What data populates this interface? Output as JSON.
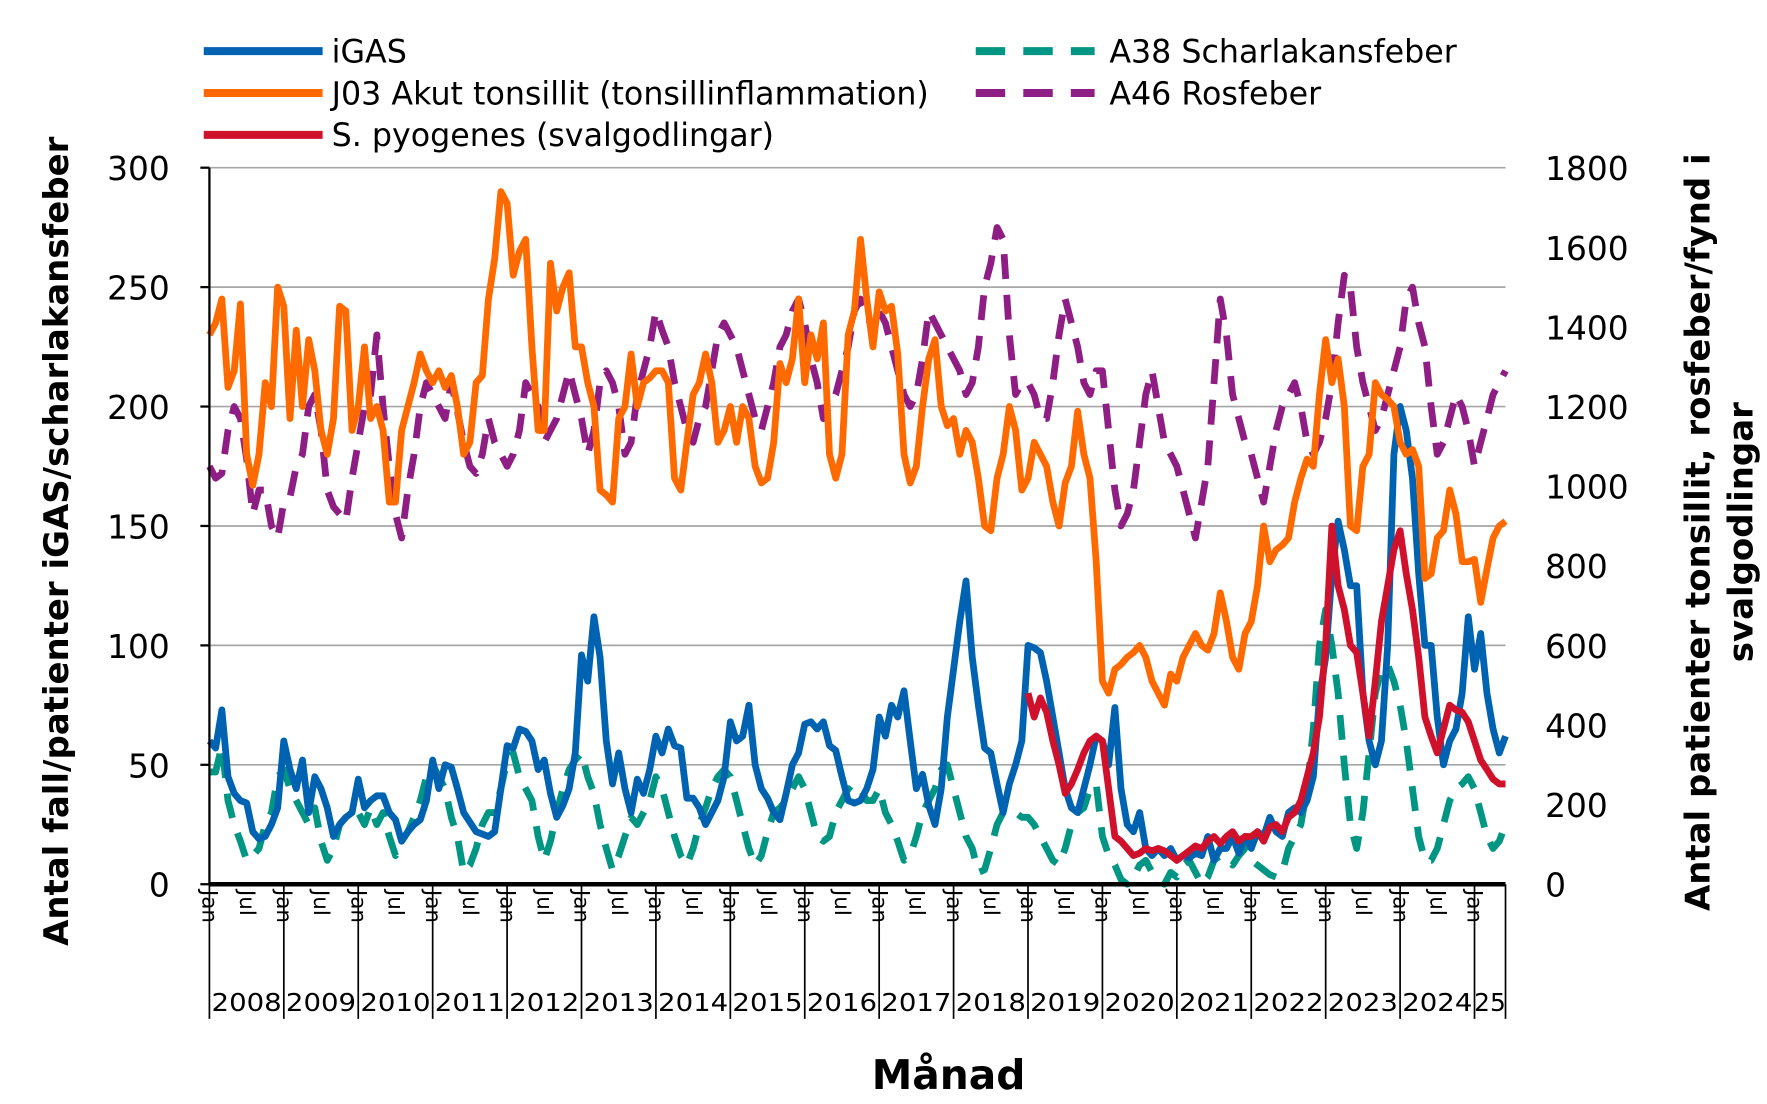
{
  "chart_data": {
    "type": "line",
    "title": "",
    "xlabel": "Månad",
    "ylabel_left": "Antal fall/patienter iGAS/scharlakansfeber",
    "ylabel_right": "Antal patienter tonsillit, rosfeber/fynd i svalgodlingar",
    "ylim_left": [
      0,
      300
    ],
    "ylim_right": [
      0,
      1800
    ],
    "yticks_left": [
      "0",
      "50",
      "100",
      "150",
      "200",
      "250",
      "300"
    ],
    "yticks_right": [
      "0",
      "200",
      "400",
      "600",
      "800",
      "1000",
      "1200",
      "1400",
      "1600",
      "1800"
    ],
    "x_frequency": "monthly",
    "x_start": "2008-01",
    "x_end": "2025-06",
    "month_tick_labels": [
      "Jan",
      "Jul"
    ],
    "year_labels": [
      "2008",
      "2009",
      "2010",
      "2011",
      "2012",
      "2013",
      "2014",
      "2015",
      "2016",
      "2017",
      "2018",
      "2019",
      "2020",
      "2021",
      "2022",
      "2023",
      "2024",
      "25"
    ],
    "grid": "horizontal",
    "legend_position": "top",
    "series": [
      {
        "name": "iGAS",
        "axis": "left",
        "color": "#0063B1",
        "style": "solid",
        "start": "2008-01",
        "values": [
          60,
          57,
          73,
          45,
          38,
          35,
          34,
          22,
          19,
          20,
          25,
          32,
          60,
          48,
          40,
          52,
          30,
          45,
          40,
          32,
          20,
          25,
          28,
          30,
          44,
          32,
          35,
          37,
          37,
          30,
          27,
          18,
          22,
          25,
          27,
          35,
          52,
          40,
          50,
          49,
          40,
          30,
          26,
          22,
          21,
          20,
          22,
          40,
          58,
          57,
          65,
          64,
          60,
          48,
          52,
          38,
          28,
          33,
          40,
          55,
          96,
          85,
          112,
          95,
          60,
          42,
          55,
          40,
          30,
          44,
          38,
          48,
          62,
          55,
          65,
          58,
          57,
          36,
          36,
          32,
          25,
          30,
          35,
          45,
          68,
          60,
          62,
          75,
          50,
          40,
          36,
          30,
          27,
          38,
          50,
          55,
          67,
          68,
          65,
          68,
          58,
          56,
          45,
          35,
          34,
          35,
          40,
          48,
          70,
          62,
          75,
          70,
          81,
          60,
          40,
          46,
          33,
          25,
          40,
          70,
          90,
          110,
          127,
          95,
          75,
          57,
          55,
          42,
          30,
          42,
          50,
          60,
          100,
          99,
          97,
          85,
          70,
          55,
          40,
          32,
          30,
          40,
          50,
          62,
          60,
          50,
          74,
          40,
          25,
          22,
          30,
          15,
          12,
          15,
          12,
          15,
          10,
          12,
          11,
          13,
          12,
          20,
          10,
          15,
          15,
          20,
          13,
          20,
          15,
          22,
          20,
          28,
          22,
          20,
          30,
          32,
          30,
          35,
          45,
          78,
          95,
          130,
          152,
          140,
          125,
          125,
          80,
          60,
          50,
          60,
          100,
          180,
          200,
          190,
          170,
          130,
          100,
          100,
          70,
          50,
          60,
          65,
          80,
          112,
          90,
          105,
          80,
          65,
          55,
          62
        ]
      },
      {
        "name": "J03 Akut tonsillit (tonsillinflammation)",
        "axis": "right",
        "color": "#FF6A00",
        "style": "solid",
        "start": "2008-01",
        "values": [
          1380,
          1410,
          1470,
          1248,
          1290,
          1458,
          1080,
          1002,
          1080,
          1260,
          1200,
          1500,
          1452,
          1170,
          1392,
          1200,
          1368,
          1290,
          1140,
          1080,
          1170,
          1452,
          1440,
          1140,
          1200,
          1350,
          1170,
          1200,
          1140,
          960,
          960,
          1140,
          1200,
          1260,
          1332,
          1290,
          1260,
          1290,
          1248,
          1278,
          1200,
          1080,
          1110,
          1260,
          1278,
          1470,
          1572,
          1740,
          1710,
          1530,
          1590,
          1620,
          1350,
          1140,
          1140,
          1560,
          1440,
          1500,
          1536,
          1350,
          1350,
          1260,
          1200,
          990,
          978,
          960,
          1170,
          1200,
          1332,
          1200,
          1260,
          1272,
          1290,
          1290,
          1260,
          1020,
          990,
          1110,
          1230,
          1260,
          1332,
          1260,
          1110,
          1140,
          1200,
          1110,
          1200,
          1170,
          1050,
          1008,
          1020,
          1110,
          1308,
          1260,
          1320,
          1470,
          1260,
          1380,
          1320,
          1410,
          1080,
          1020,
          1080,
          1380,
          1440,
          1620,
          1470,
          1350,
          1488,
          1440,
          1452,
          1332,
          1080,
          1008,
          1050,
          1200,
          1320,
          1368,
          1200,
          1152,
          1170,
          1080,
          1140,
          1110,
          1020,
          900,
          888,
          1020,
          1080,
          1200,
          1140,
          990,
          1020,
          1110,
          1080,
          1050,
          960,
          900,
          1008,
          1050,
          1188,
          1080,
          1020,
          810,
          510,
          480,
          540,
          552,
          570,
          582,
          600,
          570,
          510,
          480,
          450,
          528,
          510,
          570,
          600,
          630,
          600,
          588,
          630,
          732,
          660,
          570,
          540,
          630,
          660,
          750,
          900,
          810,
          840,
          852,
          870,
          960,
          1020,
          1068,
          1050,
          1230,
          1368,
          1260,
          1320,
          1200,
          900,
          888,
          1050,
          1080,
          1260,
          1230,
          1218,
          1200,
          1110,
          1080,
          1092,
          1050,
          768,
          780,
          870,
          888,
          990,
          930,
          810,
          810,
          816,
          708,
          792,
          870,
          900,
          912
        ]
      },
      {
        "name": "S. pyogenes (svalgodlingar)",
        "axis": "right",
        "color": "#D0112B",
        "style": "solid",
        "start": "2019-01",
        "values": [
          480,
          420,
          468,
          432,
          360,
          300,
          228,
          252,
          288,
          330,
          360,
          372,
          360,
          240,
          120,
          108,
          90,
          72,
          78,
          90,
          84,
          90,
          84,
          72,
          60,
          72,
          84,
          96,
          90,
          108,
          120,
          102,
          120,
          132,
          108,
          120,
          120,
          132,
          108,
          144,
          150,
          132,
          168,
          180,
          210,
          270,
          330,
          420,
          600,
          900,
          750,
          690,
          600,
          582,
          480,
          372,
          510,
          660,
          750,
          840,
          888,
          780,
          690,
          570,
          420,
          372,
          330,
          390,
          450,
          438,
          432,
          408,
          360,
          312,
          288,
          264,
          252,
          252
        ]
      },
      {
        "name": "A38 Scharlakansfeber",
        "axis": "left",
        "color": "#009683",
        "style": "dashed",
        "start": "2008-01",
        "values": [
          47,
          47,
          58,
          35,
          25,
          18,
          10,
          12,
          15,
          25,
          30,
          45,
          48,
          40,
          35,
          30,
          25,
          32,
          18,
          10,
          15,
          25,
          28,
          30,
          30,
          25,
          32,
          25,
          30,
          20,
          12,
          18,
          22,
          28,
          35,
          45,
          50,
          45,
          40,
          28,
          20,
          5,
          8,
          15,
          25,
          30,
          30,
          40,
          52,
          55,
          45,
          40,
          35,
          20,
          10,
          18,
          30,
          40,
          48,
          52,
          55,
          45,
          38,
          25,
          15,
          6,
          12,
          20,
          28,
          25,
          30,
          35,
          45,
          40,
          30,
          20,
          12,
          8,
          15,
          25,
          32,
          40,
          45,
          48,
          45,
          35,
          25,
          15,
          8,
          12,
          22,
          30,
          32,
          35,
          40,
          45,
          40,
          30,
          20,
          18,
          20,
          30,
          35,
          40,
          38,
          40,
          35,
          35,
          40,
          30,
          25,
          18,
          10,
          12,
          20,
          30,
          35,
          40,
          48,
          50,
          40,
          30,
          20,
          15,
          5,
          6,
          15,
          25,
          30,
          30,
          30,
          28,
          28,
          25,
          20,
          15,
          10,
          8,
          15,
          25,
          30,
          32,
          40,
          42,
          20,
          12,
          8,
          2,
          0,
          3,
          8,
          10,
          5,
          3,
          0,
          5,
          3,
          8,
          10,
          5,
          0,
          3,
          10,
          12,
          10,
          8,
          12,
          15,
          10,
          8,
          6,
          4,
          3,
          5,
          15,
          20,
          25,
          40,
          65,
          100,
          115,
          100,
          80,
          50,
          25,
          15,
          30,
          55,
          80,
          90,
          92,
          85,
          75,
          60,
          40,
          20,
          10,
          10,
          15,
          25,
          35,
          40,
          42,
          45,
          40,
          30,
          20,
          15,
          18,
          25
        ]
      },
      {
        "name": "A46 Rosfeber",
        "axis": "right",
        "color": "#8E1E83",
        "style": "dashed",
        "start": "2008-01",
        "values": [
          1050,
          1020,
          1032,
          1140,
          1200,
          1170,
          1068,
          930,
          990,
          990,
          900,
          870,
          960,
          972,
          1050,
          1080,
          1200,
          1230,
          1140,
          990,
          948,
          930,
          912,
          1020,
          1110,
          1200,
          1230,
          1380,
          1200,
          1050,
          930,
          870,
          990,
          1080,
          1200,
          1260,
          1230,
          1200,
          1170,
          1260,
          1188,
          1110,
          1050,
          1032,
          1080,
          1170,
          1110,
          1080,
          1050,
          1080,
          1140,
          1260,
          1230,
          1200,
          1110,
          1140,
          1170,
          1230,
          1290,
          1230,
          1170,
          1080,
          1140,
          1260,
          1290,
          1260,
          1200,
          1080,
          1110,
          1230,
          1290,
          1350,
          1440,
          1392,
          1350,
          1260,
          1200,
          1140,
          1110,
          1170,
          1200,
          1290,
          1380,
          1410,
          1380,
          1350,
          1290,
          1230,
          1170,
          1140,
          1200,
          1260,
          1350,
          1380,
          1440,
          1470,
          1410,
          1320,
          1260,
          1170,
          1200,
          1230,
          1290,
          1350,
          1440,
          1470,
          1440,
          1380,
          1440,
          1410,
          1350,
          1290,
          1230,
          1200,
          1230,
          1320,
          1440,
          1410,
          1380,
          1350,
          1320,
          1290,
          1230,
          1260,
          1350,
          1500,
          1560,
          1650,
          1620,
          1380,
          1230,
          1260,
          1260,
          1230,
          1170,
          1170,
          1260,
          1380,
          1470,
          1410,
          1350,
          1260,
          1230,
          1290,
          1290,
          1140,
          990,
          900,
          930,
          990,
          1110,
          1230,
          1290,
          1200,
          1110,
          1080,
          1050,
          990,
          930,
          870,
          960,
          1050,
          1260,
          1470,
          1380,
          1230,
          1170,
          1110,
          1080,
          1020,
          960,
          1050,
          1140,
          1200,
          1230,
          1260,
          1200,
          1110,
          1080,
          1110,
          1170,
          1260,
          1410,
          1530,
          1500,
          1350,
          1260,
          1200,
          1140,
          1170,
          1230,
          1290,
          1350,
          1470,
          1500,
          1410,
          1350,
          1200,
          1080,
          1110,
          1170,
          1230,
          1200,
          1140,
          1050,
          1110,
          1170,
          1230,
          1260,
          1290
        ]
      }
    ],
    "legend_order": [
      0,
      1,
      2,
      3,
      4
    ]
  }
}
